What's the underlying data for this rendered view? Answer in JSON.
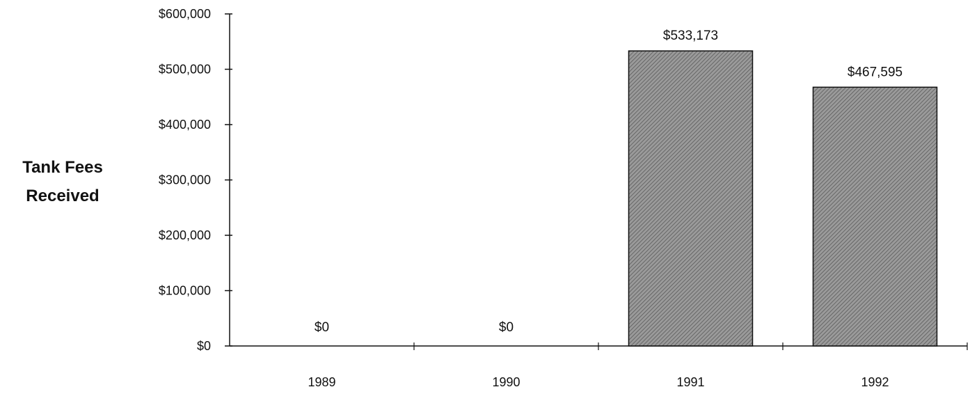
{
  "chart_data": {
    "type": "bar",
    "categories": [
      "1989",
      "1990",
      "1991",
      "1992"
    ],
    "values": [
      0,
      0,
      533173,
      467595
    ],
    "data_labels": [
      "$0",
      "$0",
      "$533,173",
      "$467,595"
    ],
    "title": "",
    "xlabel": "",
    "ylabel": [
      "Tank Fees",
      "Received"
    ],
    "ylim": [
      0,
      600000
    ],
    "y_ticks": [
      0,
      100000,
      200000,
      300000,
      400000,
      500000,
      600000
    ],
    "y_tick_labels": [
      "$0",
      "$100,000",
      "$200,000",
      "$300,000",
      "$400,000",
      "$500,000",
      "$600,000"
    ],
    "grid": false,
    "bar_color": "#8a8a8a"
  }
}
